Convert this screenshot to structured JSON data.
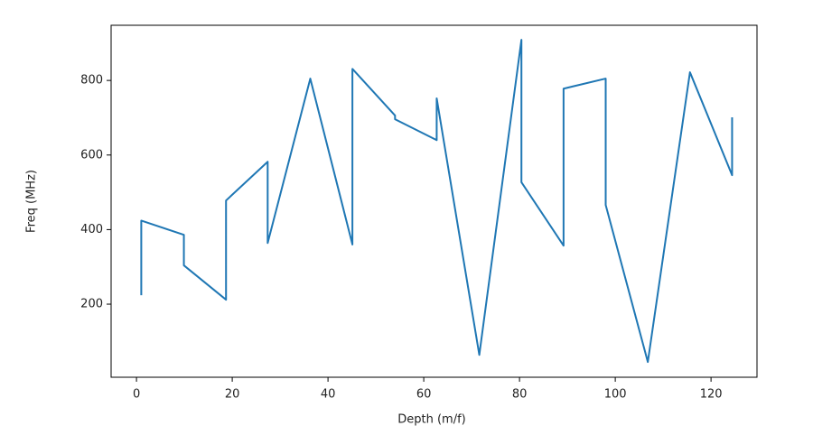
{
  "chart_data": {
    "type": "line",
    "xlabel": "Depth (m/f)",
    "ylabel": "Freq (MHz)",
    "x": [
      1,
      1,
      9.9,
      9.9,
      18.7,
      18.7,
      27.4,
      27.4,
      36.3,
      45.1,
      45.1,
      54,
      54,
      62.7,
      62.7,
      71.6,
      80.4,
      80.4,
      89.2,
      89.2,
      98,
      98,
      106.8,
      115.6,
      124.4,
      124.4
    ],
    "values": [
      224,
      424,
      386,
      304,
      212,
      478,
      582,
      364,
      805,
      360,
      831,
      706,
      696,
      640,
      752,
      64,
      909,
      527,
      357,
      778,
      805,
      466,
      45,
      822,
      546,
      701
    ],
    "color": "#1f77b4",
    "xlim": [
      -5.3,
      129.6
    ],
    "ylim": [
      4,
      948
    ],
    "xticks": [
      0,
      20,
      40,
      60,
      80,
      100,
      120
    ],
    "yticks": [
      200,
      400,
      600,
      800
    ],
    "grid": false
  }
}
